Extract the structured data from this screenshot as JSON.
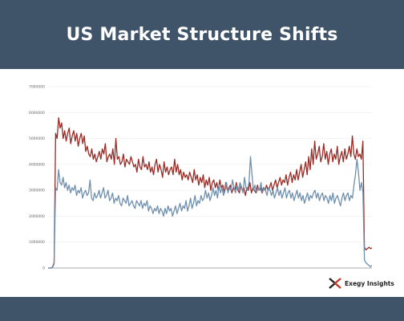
{
  "header": {
    "title": "US Market Structure Shifts"
  },
  "brand": {
    "name": "Exegy Insights"
  },
  "colors": {
    "header_bg": "#3f5468",
    "series_red": "#9b2a24",
    "series_blue": "#6f8fae",
    "axis": "#aaaaaa"
  },
  "chart_data": {
    "type": "line",
    "title": "",
    "xlabel": "",
    "ylabel": "",
    "ylim": [
      0,
      7000000
    ],
    "yticks": [
      0,
      1000000,
      2000000,
      3000000,
      4000000,
      5000000,
      6000000,
      7000000
    ],
    "ytick_labels": [
      "0",
      "1000000",
      "2000000",
      "3000000",
      "4000000",
      "5000000",
      "6000000",
      "7000000"
    ],
    "grid": true,
    "legend": "none",
    "series": [
      {
        "color": "#9b2a24",
        "values": [
          0,
          0,
          0,
          50000,
          200000,
          5200000,
          5000000,
          5800000,
          5400000,
          5600000,
          5000000,
          5300000,
          4900000,
          5200000,
          5400000,
          4800000,
          5100000,
          5300000,
          4900000,
          5200000,
          4700000,
          5000000,
          5200000,
          4800000,
          5100000,
          4500000,
          4700000,
          4400000,
          4300000,
          4600000,
          4200000,
          4400000,
          4100000,
          4300000,
          4500000,
          4200000,
          4600000,
          4400000,
          4800000,
          4100000,
          4300000,
          4400000,
          4200000,
          4600000,
          4000000,
          5000000,
          4200000,
          4300000,
          4000000,
          4100000,
          4400000,
          3900000,
          4200000,
          4100000,
          4000000,
          4300000,
          4100000,
          3900000,
          4000000,
          3700000,
          4200000,
          3900000,
          3800000,
          4300000,
          3900000,
          4000000,
          3800000,
          4100000,
          3700000,
          3900000,
          3600000,
          4000000,
          4200000,
          3700000,
          4000000,
          3800000,
          3500000,
          4100000,
          3700000,
          3900000,
          3600000,
          3800000,
          3900000,
          3600000,
          4200000,
          3700000,
          4000000,
          3600000,
          3800000,
          3400000,
          3700000,
          3500000,
          3600000,
          3400000,
          3700000,
          3500000,
          3300000,
          3800000,
          3400000,
          3600000,
          3200000,
          3500000,
          3300000,
          3600000,
          3100000,
          3400000,
          3200000,
          3500000,
          3000000,
          3300000,
          3400000,
          3100000,
          3300000,
          3000000,
          3400000,
          3100000,
          3200000,
          2900000,
          3300000,
          3000000,
          3100000,
          3200000,
          2900000,
          3100000,
          3000000,
          3300000,
          3000000,
          2900000,
          3200000,
          3000000,
          3100000,
          2800000,
          3100000,
          3000000,
          3300000,
          2900000,
          3100000,
          3000000,
          2900000,
          3200000,
          3000000,
          3100000,
          2900000,
          3100000,
          3000000,
          3200000,
          3000000,
          3100000,
          3300000,
          3000000,
          3200000,
          3400000,
          3100000,
          3300000,
          3500000,
          3200000,
          3400000,
          3300000,
          3600000,
          3200000,
          3500000,
          3700000,
          3300000,
          3600000,
          3400000,
          3800000,
          3400000,
          3700000,
          4000000,
          3500000,
          3800000,
          4100000,
          3600000,
          4300000,
          3800000,
          4600000,
          4000000,
          4900000,
          4200000,
          4400000,
          4700000,
          4100000,
          4300000,
          4800000,
          4200000,
          4500000,
          4000000,
          4400000,
          4600000,
          4100000,
          4400000,
          4200000,
          4700000,
          4000000,
          4300000,
          4500000,
          4100000,
          4600000,
          4200000,
          4400000,
          4700000,
          4300000,
          5100000,
          4400000,
          4200000,
          4600000,
          4300000,
          4400000,
          4200000,
          4900000,
          800000,
          700000,
          750000,
          800000,
          750000,
          780000
        ]
      },
      {
        "color": "#6f8fae",
        "values": [
          0,
          0,
          0,
          30000,
          150000,
          3100000,
          3000000,
          3800000,
          3300000,
          3200000,
          3500000,
          3100000,
          3300000,
          3000000,
          3200000,
          2900000,
          3100000,
          3000000,
          3200000,
          2800000,
          3000000,
          2900000,
          3100000,
          2700000,
          2900000,
          3000000,
          2800000,
          2900000,
          3400000,
          2700000,
          2600000,
          2900000,
          2700000,
          2800000,
          3000000,
          2700000,
          2900000,
          3100000,
          2700000,
          2800000,
          3000000,
          2600000,
          2700000,
          2900000,
          2500000,
          2700000,
          2600000,
          2800000,
          2500000,
          2400000,
          2700000,
          2600000,
          2500000,
          2800000,
          2400000,
          2500000,
          2600000,
          2400000,
          2300000,
          2600000,
          2500000,
          2400000,
          2600000,
          2300000,
          2500000,
          2400000,
          2600000,
          2200000,
          2400000,
          2300000,
          2100000,
          2300000,
          2200000,
          2400000,
          2100000,
          2300000,
          2200000,
          2000000,
          2300000,
          2100000,
          2400000,
          2200000,
          2300000,
          2000000,
          2200000,
          2400000,
          2100000,
          2300000,
          2500000,
          2200000,
          2400000,
          2300000,
          2600000,
          2200000,
          2400000,
          2700000,
          2300000,
          2500000,
          2800000,
          2400000,
          2600000,
          2500000,
          2800000,
          2600000,
          2700000,
          3000000,
          2700000,
          2900000,
          2600000,
          2800000,
          3100000,
          2800000,
          3000000,
          2700000,
          3200000,
          2900000,
          3100000,
          2800000,
          3000000,
          3300000,
          2900000,
          3100000,
          3000000,
          3400000,
          3100000,
          2900000,
          3200000,
          3000000,
          3300000,
          3100000,
          2900000,
          3500000,
          3100000,
          3000000,
          3300000,
          4300000,
          3600000,
          3000000,
          3200000,
          2900000,
          3100000,
          3000000,
          3300000,
          2900000,
          3100000,
          3000000,
          2800000,
          3100000,
          3000000,
          2800000,
          3000000,
          2700000,
          2900000,
          3100000,
          2800000,
          3000000,
          2700000,
          2900000,
          3100000,
          2700000,
          2900000,
          3000000,
          2700000,
          2900000,
          2600000,
          2800000,
          3000000,
          2700000,
          2900000,
          2600000,
          2800000,
          2500000,
          2700000,
          2900000,
          2600000,
          2800000,
          2700000,
          2900000,
          3000000,
          2700000,
          2900000,
          2600000,
          2800000,
          2900000,
          2600000,
          2800000,
          2700000,
          2500000,
          2800000,
          2600000,
          2900000,
          2500000,
          2700000,
          2800000,
          2600000,
          2400000,
          2700000,
          2900000,
          2600000,
          2800000,
          2900000,
          2600000,
          2800000,
          2700000,
          3200000,
          3600000,
          4200000,
          3700000,
          3000000,
          3300000,
          2900000,
          300000,
          200000,
          150000,
          100000,
          50000,
          100000
        ]
      }
    ]
  }
}
